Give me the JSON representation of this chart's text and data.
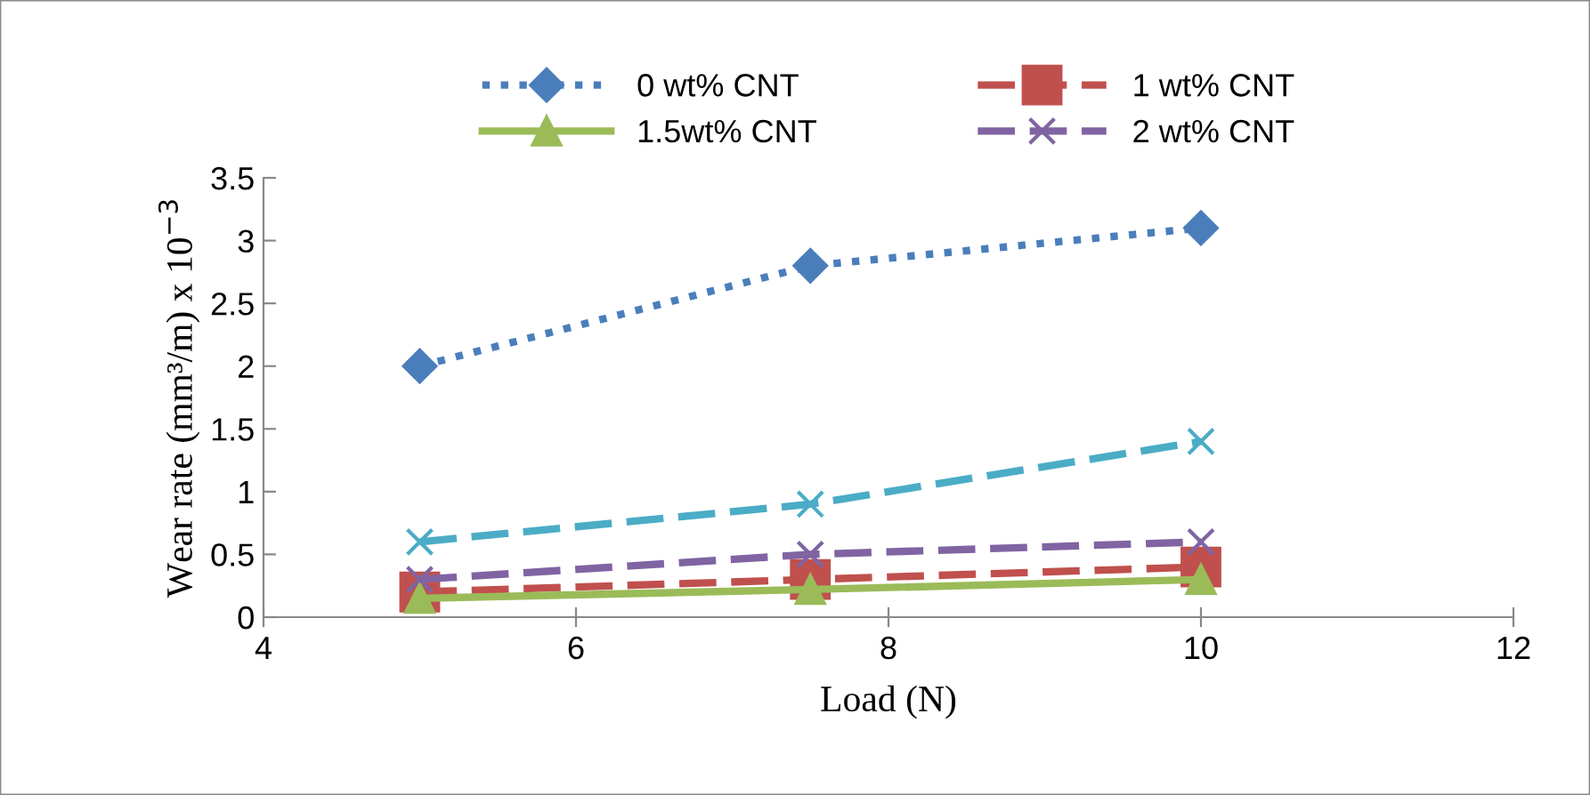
{
  "chart_data": {
    "type": "line",
    "xlabel": "Load (N)",
    "ylabel": "Wear rate (mm³/m) x 10$^{−3}$",
    "x": [
      5,
      7.5,
      10
    ],
    "series": [
      {
        "name": "0 wt% CNT",
        "color": "#4a7ebb",
        "values": [
          2.0,
          2.8,
          3.1
        ],
        "marker": "diamond",
        "line_style": "dotted"
      },
      {
        "name": "1 wt% CNT",
        "color": "#c0504d",
        "values": [
          0.2,
          0.3,
          0.4
        ],
        "marker": "square",
        "line_style": "dashed"
      },
      {
        "name": "1.5wt% CNT",
        "color": "#9bbb59",
        "values": [
          0.15,
          0.22,
          0.3
        ],
        "marker": "triangle",
        "line_style": "solid"
      },
      {
        "name": "2 wt% CNT",
        "color": "#8064a2",
        "values": [
          0.3,
          0.5,
          0.6
        ],
        "marker": "cross",
        "line_style": "dashed"
      },
      {
        "color": "#4bacc6",
        "values": [
          0.6,
          0.9,
          1.4
        ],
        "marker": "cross",
        "line_style": "dashed"
      }
    ],
    "xlim": [
      4,
      12
    ],
    "xticks": [
      4,
      6,
      8,
      10,
      12
    ],
    "ylim": [
      0,
      3.5
    ],
    "yticks": [
      0,
      0.5,
      1,
      1.5,
      2,
      2.5,
      3,
      3.5
    ],
    "grid": false,
    "legend": "top"
  }
}
